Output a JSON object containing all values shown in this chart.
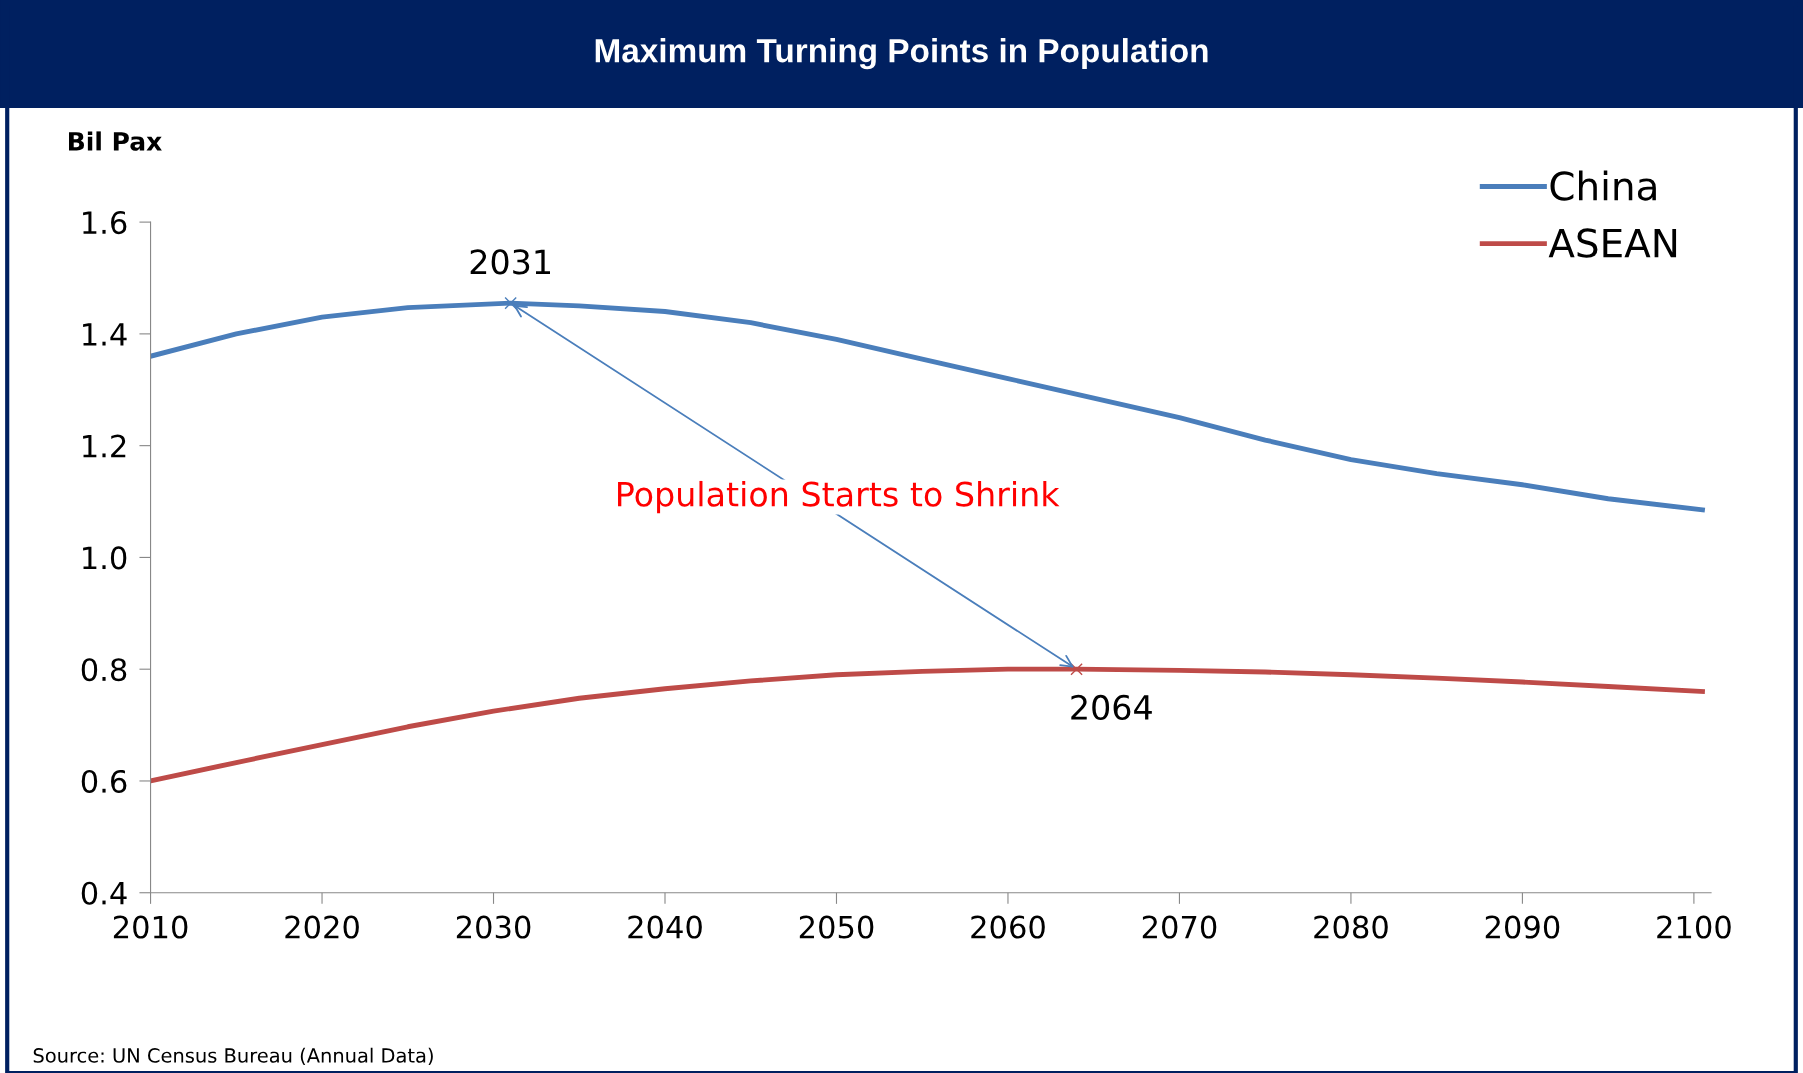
{
  "chart_data": {
    "type": "line",
    "title": "Maximum Turning Points in Population",
    "ylabel": "Bil Pax",
    "series": [
      {
        "name": "China",
        "color": "#4a7ebb",
        "x": [
          2010,
          2015,
          2020,
          2025,
          2031,
          2035,
          2040,
          2045,
          2050,
          2055,
          2060,
          2065,
          2070,
          2075,
          2080,
          2085,
          2090,
          2095,
          2100.5
        ],
        "values": [
          1.36,
          1.4,
          1.43,
          1.447,
          1.455,
          1.45,
          1.44,
          1.42,
          1.39,
          1.355,
          1.32,
          1.285,
          1.25,
          1.21,
          1.175,
          1.15,
          1.13,
          1.105,
          1.085
        ]
      },
      {
        "name": "ASEAN",
        "color": "#be4b48",
        "x": [
          2010,
          2015,
          2020,
          2025,
          2030,
          2035,
          2040,
          2045,
          2050,
          2055,
          2060,
          2064,
          2070,
          2075,
          2080,
          2085,
          2090,
          2095,
          2100.5
        ],
        "values": [
          0.6,
          0.633,
          0.665,
          0.697,
          0.725,
          0.748,
          0.765,
          0.779,
          0.79,
          0.796,
          0.8,
          0.8,
          0.798,
          0.795,
          0.79,
          0.784,
          0.777,
          0.769,
          0.76
        ]
      }
    ],
    "xlim": [
      2010,
      2101
    ],
    "xticks": [
      2010,
      2020,
      2030,
      2040,
      2050,
      2060,
      2070,
      2080,
      2090,
      2100
    ],
    "ylim": [
      0.4,
      1.6
    ],
    "yticks": [
      {
        "value": 0.4,
        "label": "0.4"
      },
      {
        "value": 0.6,
        "label": "0.6"
      },
      {
        "value": 0.8,
        "label": "0.8"
      },
      {
        "value": 1.0,
        "label": "1.0"
      },
      {
        "value": 1.2,
        "label": "1.2"
      },
      {
        "value": 1.4,
        "label": "1.4"
      },
      {
        "value": 1.6,
        "label": "1.6"
      }
    ],
    "grid": false,
    "legend": "top right",
    "marker": "none",
    "line_style": "solid",
    "annotations": [
      {
        "text": "2031",
        "x": 2031,
        "y": 1.455
      },
      {
        "text": "2064",
        "x": 2064,
        "y": 0.8
      },
      "Population Starts to Shrink",
      "Source: UN Census Bureau (Annual Data)"
    ]
  }
}
